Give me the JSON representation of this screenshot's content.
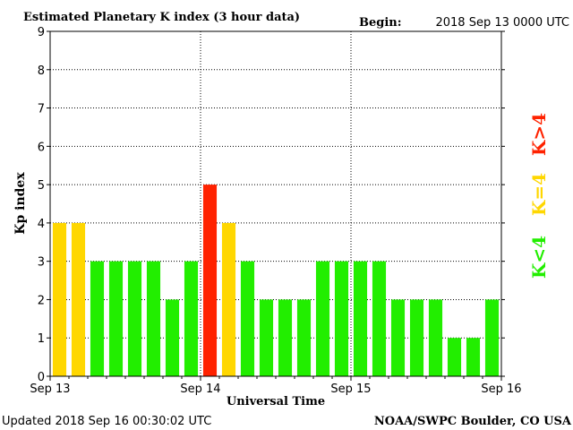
{
  "chart_data": {
    "type": "bar",
    "title": "Estimated Planetary K index (3 hour data)",
    "begin_label": "Begin:",
    "begin_value": "2018 Sep 13 0000 UTC",
    "xlabel": "Universal Time",
    "ylabel": "Kp index",
    "ylim": [
      0,
      9
    ],
    "y_ticks": [
      0,
      1,
      2,
      3,
      4,
      5,
      6,
      7,
      8,
      9
    ],
    "x_tick_labels": [
      "Sep 13",
      "Sep 14",
      "Sep 15",
      "Sep 16"
    ],
    "grid": true,
    "values": [
      4,
      4,
      3,
      3,
      3,
      3,
      2,
      3,
      5,
      4,
      3,
      2,
      2,
      2,
      3,
      3,
      3,
      3,
      2,
      2,
      2,
      1,
      1,
      2
    ],
    "legend": [
      {
        "label": "K<4",
        "color": "#22ee00"
      },
      {
        "label": "K=4",
        "color": "#ffd700"
      },
      {
        "label": "K>4",
        "color": "#ff2200"
      }
    ],
    "colors": {
      "below": "#22ee00",
      "equal": "#ffd700",
      "above": "#ff2200"
    }
  },
  "footer": {
    "updated": "Updated 2018 Sep 16 00:30:02 UTC",
    "source": "NOAA/SWPC Boulder, CO USA"
  }
}
